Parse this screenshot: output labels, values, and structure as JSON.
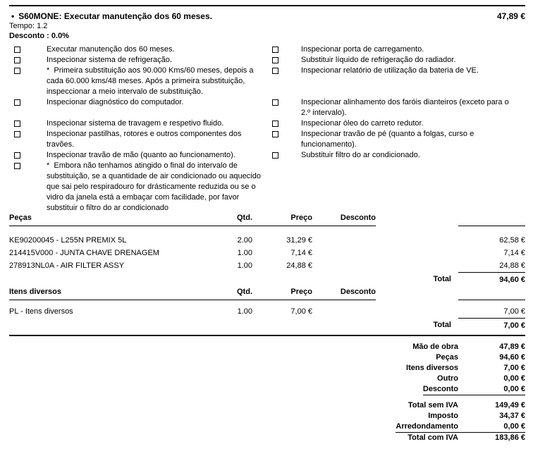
{
  "job": {
    "bullet": "•",
    "title": "S60MONE: Executar manutenção dos 60 meses.",
    "price": "47,89 €",
    "tempo": "Tempo: 1.2",
    "desconto": "Desconto : 0.0%"
  },
  "checklist": {
    "left": [
      {
        "text": "Executar manutenção dos 60 meses."
      },
      {
        "text": "Inspecionar sistema de refrigeração."
      },
      {
        "text": "*  Primeira substituição aos 90.000 Kms/60 meses, depois a\ncada 60.000 kms/48 meses. Após a primeira substituição,\ninspeccionar a meio intervalo de substituição."
      },
      {
        "text": "Inspecionar diagnóstico do computador."
      },
      {
        "text": "Inspecionar sistema de travagem e respetivo fluido.",
        "gap_lines": 1
      },
      {
        "text": "Inspecionar pastilhas, rotores e outros componentes dos\ntravões."
      },
      {
        "text": "Inspecionar travão de mão (quanto ao funcionamento)."
      },
      {
        "text": "*  Embora não tenhamos atingido o final do intervalo de\nsubstituição, se a quantidade de air condicionado ou aquecido\nque sai pelo respiradouro for drásticamente reduzida ou se o\nvidro da janela está a embaçar com facilidade, por favor\nsubstituir o filtro do ar condicionado"
      }
    ],
    "right": [
      {
        "text": "Inspecionar porta de carregamento."
      },
      {
        "text": "Substituir líquido de refrigeração do radiador."
      },
      {
        "text": "Inspecionar relatório de utilização da bateria de VE."
      },
      {
        "text": "Inspecionar alinhamento dos faróis dianteiros (exceto para o\n2.º intervalo).",
        "gap_lines": 2
      },
      {
        "text": "Inspecionar óleo do carreto redutor."
      },
      {
        "text": "Inspecionar travão de pé (quanto a folgas, curso e\nfuncionamento)."
      },
      {
        "text": "Substituir filtro do ar condicionado."
      }
    ]
  },
  "parts": {
    "title": "Peças",
    "headers": {
      "qty": "Qtd.",
      "price": "Preço",
      "discount": "Desconto"
    },
    "rows": [
      {
        "desc": "KE90200045 - L255N PREMIX 5L",
        "qty": "2.00",
        "price": "31,29 €",
        "discount": "",
        "total": "62,58 €"
      },
      {
        "desc": "214415V000 - JUNTA CHAVE DRENAGEM",
        "qty": "1.00",
        "price": "7,14 €",
        "discount": "",
        "total": "7,14 €"
      },
      {
        "desc": "278913NL0A - AIR FILTER ASSY",
        "qty": "1.00",
        "price": "24,88 €",
        "discount": "",
        "total": "24,88 €"
      }
    ],
    "total_label": "Total",
    "total_value": "94,60 €"
  },
  "misc": {
    "title": "Itens diversos",
    "headers": {
      "qty": "Qtd.",
      "price": "Preço",
      "discount": "Desconto"
    },
    "rows": [
      {
        "desc": "PL - Itens diversos",
        "qty": "1.00",
        "price": "7,00 €",
        "discount": "",
        "total": "7,00 €"
      }
    ],
    "total_label": "Total",
    "total_value": "7,00 €"
  },
  "summary": {
    "rows": [
      {
        "label": "Mão de obra",
        "value": "47,89 €"
      },
      {
        "label": "Peças",
        "value": "94,60 €"
      },
      {
        "label": "Itens diversos",
        "value": "7,00 €"
      },
      {
        "label": "Outro",
        "value": "0,00 €"
      },
      {
        "label": "Desconto",
        "value": "0,00 €",
        "underline": true
      },
      {
        "label": "Total sem IVA",
        "value": "149,49 €",
        "gap_before": true
      },
      {
        "label": "Imposto",
        "value": "34,37 €"
      },
      {
        "label": "Arredondamento",
        "value": "0,00 €",
        "underline": true
      },
      {
        "label": "Total com IVA",
        "value": "183,86 €"
      }
    ]
  }
}
